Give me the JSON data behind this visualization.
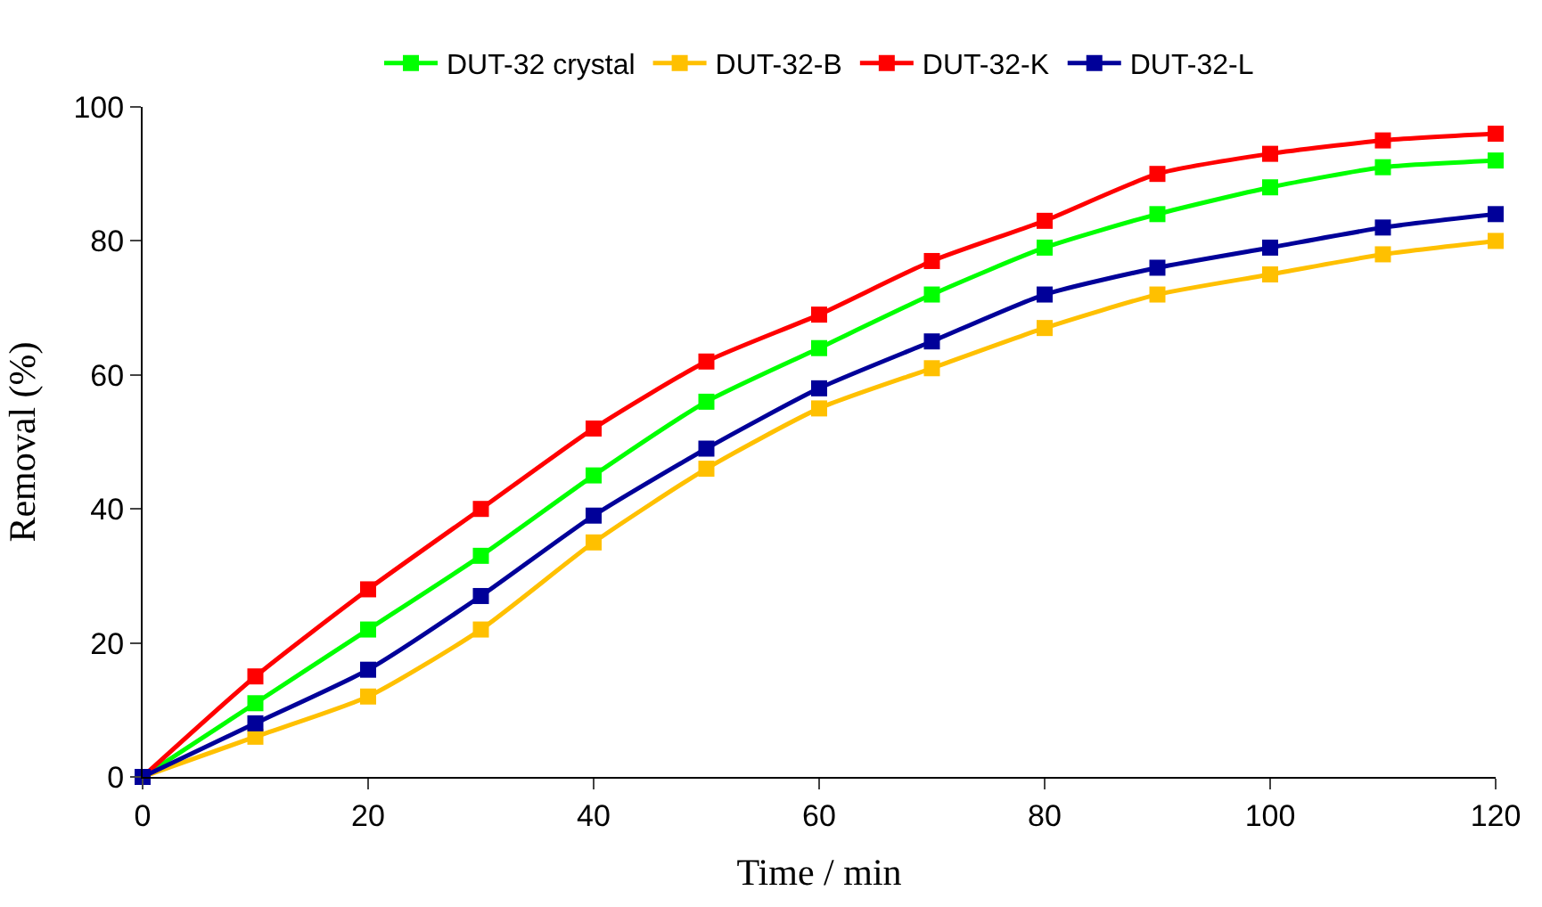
{
  "chart_data": {
    "type": "line",
    "xlabel": "Time / min",
    "ylabel": "Removal (%)",
    "x": [
      0,
      10,
      20,
      30,
      40,
      50,
      60,
      70,
      80,
      90,
      100,
      110,
      120
    ],
    "series": [
      {
        "name": "DUT-32 crystal",
        "color": "#00ff00",
        "values": [
          0,
          11,
          22,
          33,
          45,
          56,
          64,
          72,
          79,
          84,
          88,
          91,
          92
        ]
      },
      {
        "name": "DUT-32-B",
        "color": "#ffc000",
        "values": [
          0,
          6,
          12,
          22,
          35,
          46,
          55,
          61,
          67,
          72,
          75,
          78,
          80
        ]
      },
      {
        "name": "DUT-32-K",
        "color": "#ff0000",
        "values": [
          0,
          15,
          28,
          40,
          52,
          62,
          69,
          77,
          83,
          90,
          93,
          95,
          96
        ]
      },
      {
        "name": "DUT-32-L",
        "color": "#000099",
        "values": [
          0,
          8,
          16,
          27,
          39,
          49,
          58,
          65,
          72,
          76,
          79,
          82,
          84
        ]
      }
    ],
    "xlim": [
      0,
      120
    ],
    "xticks": [
      0,
      20,
      40,
      60,
      80,
      100,
      120
    ],
    "ylim": [
      0,
      100
    ],
    "yticks": [
      0,
      20,
      40,
      60,
      80,
      100
    ],
    "grid": false,
    "legend": "top",
    "marker": "square",
    "line_style": "solid"
  }
}
